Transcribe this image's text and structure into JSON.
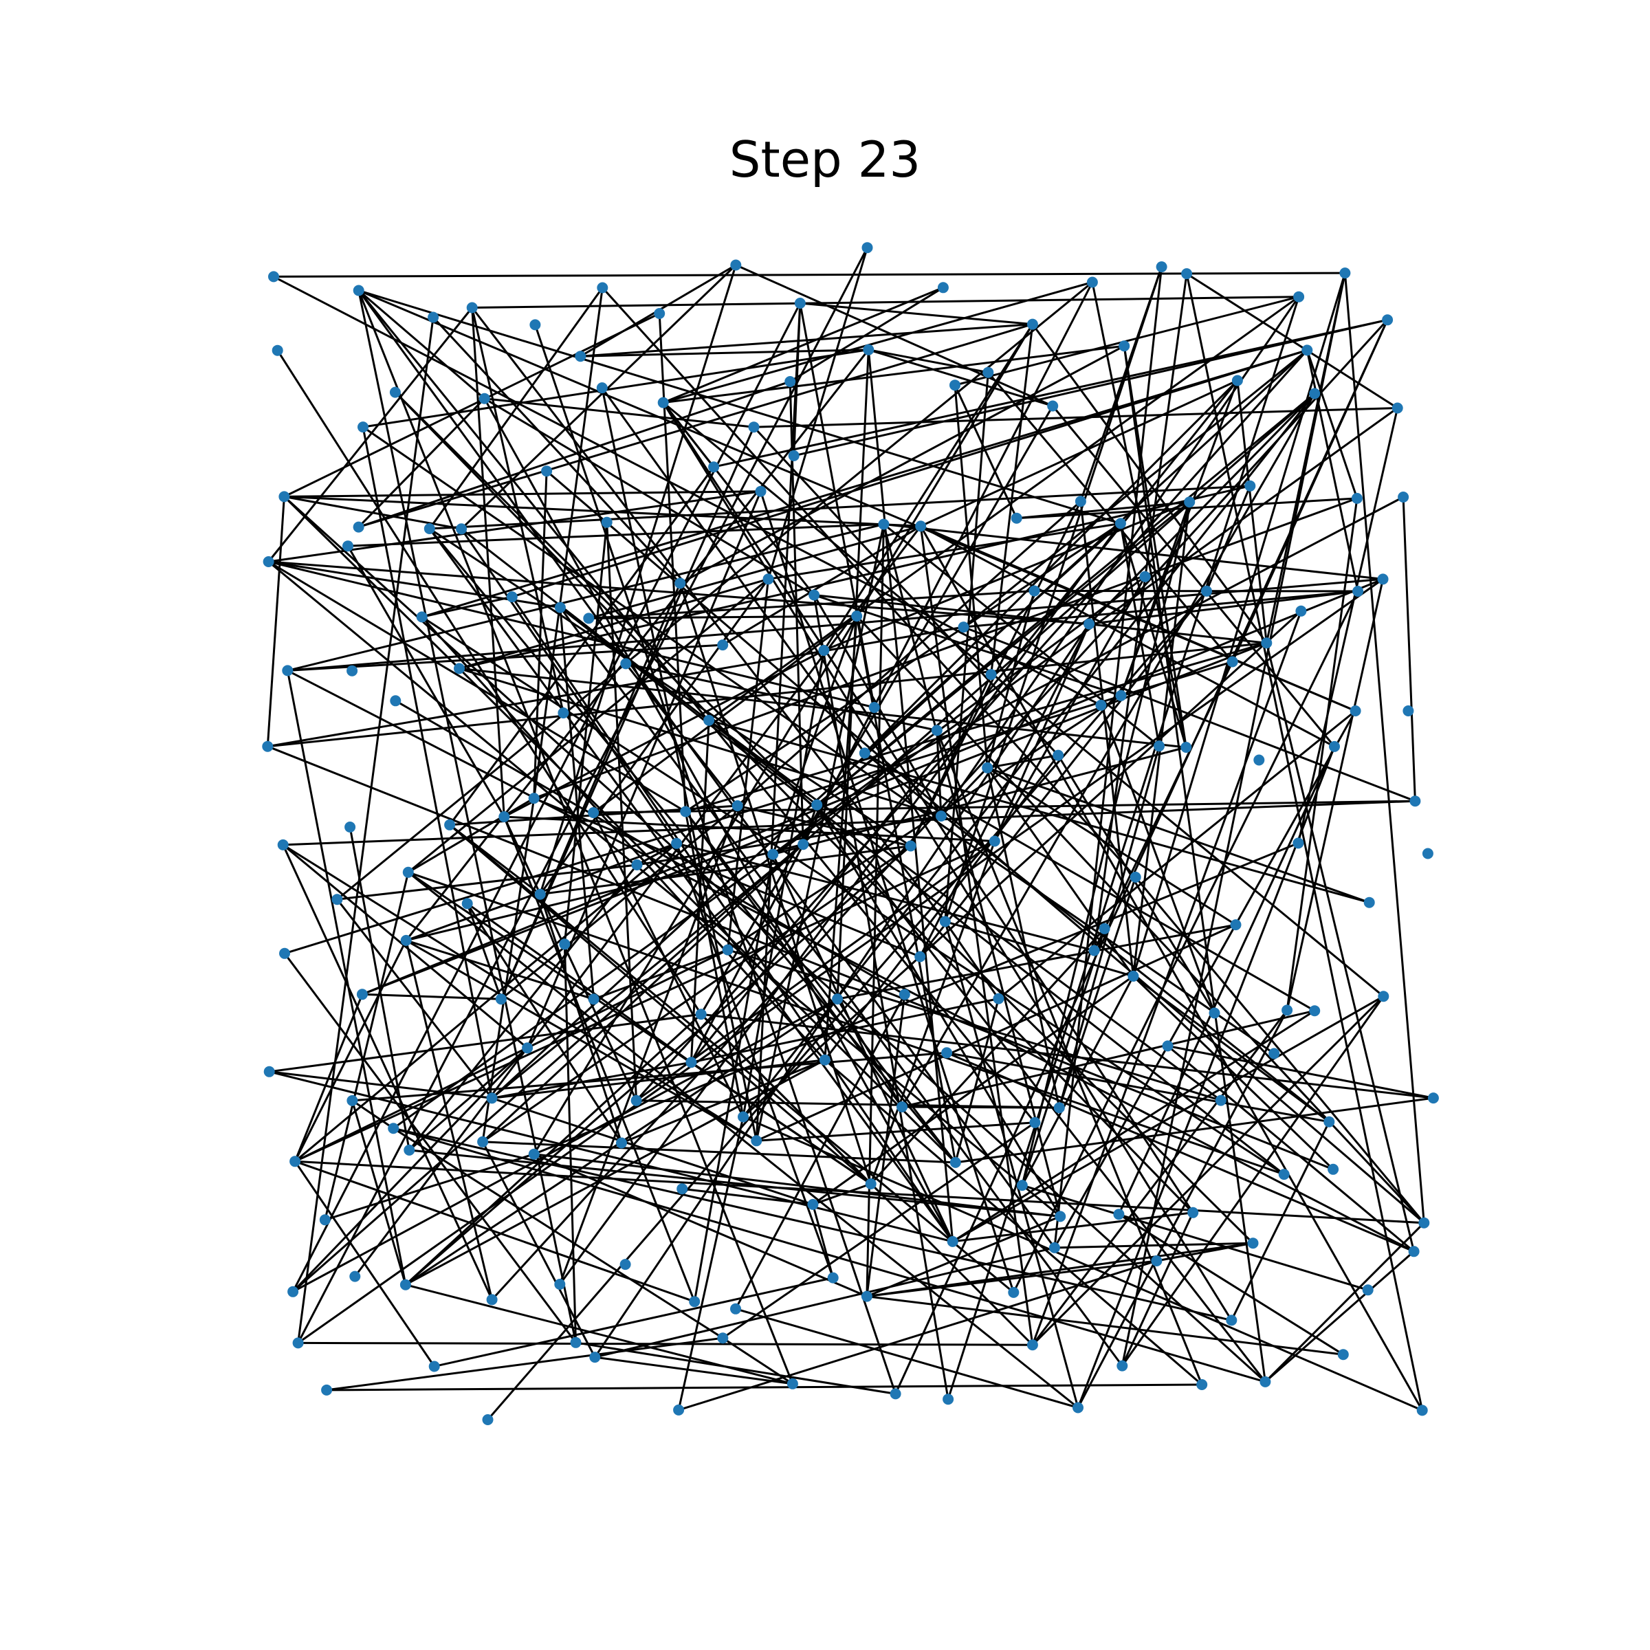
{
  "title": "Step 23",
  "colors": {
    "node": "#1f77b4",
    "edge": "#000000",
    "background": "#ffffff"
  },
  "graph": {
    "node_count": 216,
    "edge_count": 432,
    "layout_seed": 23
  }
}
